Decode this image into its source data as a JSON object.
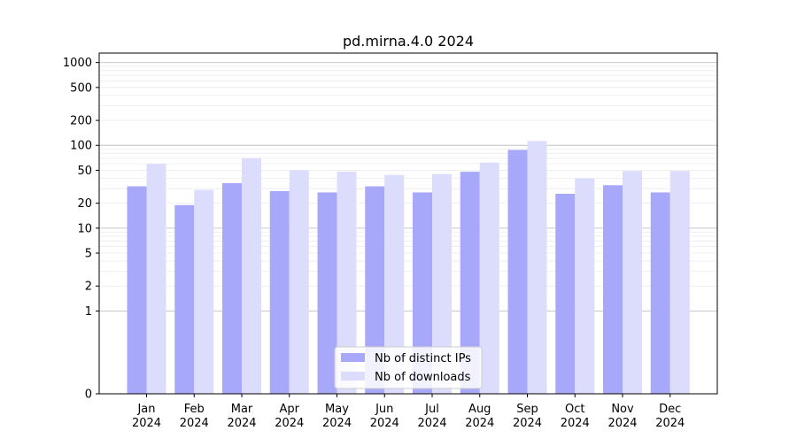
{
  "chart_data": {
    "type": "bar",
    "title": "pd.mirna.4.0 2024",
    "xlabel": "",
    "ylabel": "",
    "yscale": "symlog",
    "ylim": [
      0,
      1300
    ],
    "grid": "horizontal major and minor lines",
    "legend_position": "bottom-center",
    "categories": [
      [
        "Jan",
        "2024"
      ],
      [
        "Feb",
        "2024"
      ],
      [
        "Mar",
        "2024"
      ],
      [
        "Apr",
        "2024"
      ],
      [
        "May",
        "2024"
      ],
      [
        "Jun",
        "2024"
      ],
      [
        "Jul",
        "2024"
      ],
      [
        "Aug",
        "2024"
      ],
      [
        "Sep",
        "2024"
      ],
      [
        "Oct",
        "2024"
      ],
      [
        "Nov",
        "2024"
      ],
      [
        "Dec",
        "2024"
      ]
    ],
    "yticks": [
      "0",
      "1",
      "2",
      "5",
      "10",
      "20",
      "50",
      "100",
      "200",
      "500",
      "1000"
    ],
    "series": [
      {
        "name": "Nb of distinct IPs",
        "color": "#a8a8fa",
        "values": [
          32,
          19,
          35,
          28,
          27,
          32,
          27,
          48,
          88,
          26,
          33,
          27
        ]
      },
      {
        "name": "Nb of downloads",
        "color": "#dcdcfc",
        "values": [
          60,
          29,
          70,
          50,
          48,
          44,
          45,
          62,
          113,
          40,
          49,
          49
        ]
      }
    ]
  }
}
